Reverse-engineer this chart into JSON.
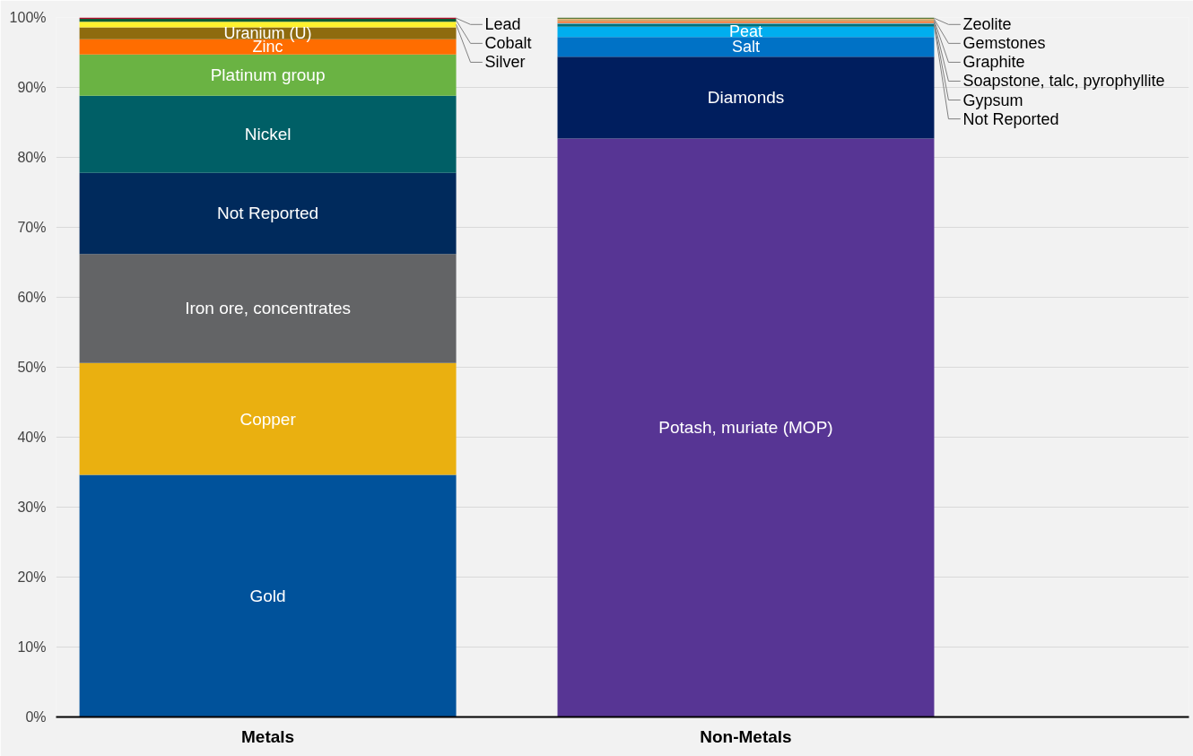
{
  "chart_data": {
    "type": "bar",
    "stacked": true,
    "categories": [
      "Metals",
      "Non-Metals"
    ],
    "ylim": [
      0,
      100
    ],
    "yticks": [
      {
        "value": 0,
        "label": "0%"
      },
      {
        "value": 10,
        "label": "10%"
      },
      {
        "value": 20,
        "label": "20%"
      },
      {
        "value": 30,
        "label": "30%"
      },
      {
        "value": 40,
        "label": "40%"
      },
      {
        "value": 50,
        "label": "50%"
      },
      {
        "value": 60,
        "label": "60%"
      },
      {
        "value": 70,
        "label": "70%"
      },
      {
        "value": 80,
        "label": "80%"
      },
      {
        "value": 90,
        "label": "90%"
      },
      {
        "value": 100,
        "label": "100%"
      }
    ],
    "grid": "y",
    "series": [
      {
        "name": "Gold",
        "color": "#00529b",
        "values": [
          34.6,
          null
        ]
      },
      {
        "name": "Copper",
        "color": "#eab010",
        "values": [
          16.0,
          null
        ]
      },
      {
        "name": "Iron ore, concentrates",
        "color": "#636466",
        "values": [
          15.6,
          null
        ]
      },
      {
        "name": "Not Reported",
        "color": "#002a5c",
        "values": [
          11.6,
          null
        ]
      },
      {
        "name": "Nickel",
        "color": "#005f66",
        "values": [
          11.0,
          null
        ]
      },
      {
        "name": "Platinum group",
        "color": "#6ab343",
        "values": [
          5.9,
          null
        ]
      },
      {
        "name": "Zinc",
        "color": "#ff6d00",
        "values": [
          2.2,
          null
        ]
      },
      {
        "name": "Uranium (U)",
        "color": "#8e6b0e",
        "values": [
          1.7,
          null
        ]
      },
      {
        "name": "Silver",
        "color": "#fff22e",
        "values": [
          0.8,
          null
        ]
      },
      {
        "name": "Cobalt",
        "color": "#0e5a34",
        "values": [
          0.4,
          null
        ]
      },
      {
        "name": "Lead",
        "color": "#b00f2d",
        "values": [
          0.2,
          null
        ]
      },
      {
        "name": "Potash, muriate (MOP)",
        "color": "#573594",
        "values": [
          null,
          82.7
        ]
      },
      {
        "name": "Diamonds",
        "color": "#001e5e",
        "values": [
          null,
          11.7
        ]
      },
      {
        "name": "Salt",
        "color": "#0072c6",
        "values": [
          null,
          2.8
        ]
      },
      {
        "name": "Peat",
        "color": "#00aeef",
        "values": [
          null,
          1.5
        ]
      },
      {
        "name": "Not Reported",
        "color": "#00707a",
        "values": [
          null,
          0.4
        ]
      },
      {
        "name": "Gypsum",
        "color": "#4fb4e0",
        "values": [
          null,
          0.1
        ]
      },
      {
        "name": "Soapstone, talc, pyrophyllite",
        "color": "#f47a3a",
        "values": [
          null,
          0.3
        ]
      },
      {
        "name": "Graphite",
        "color": "#c8a060",
        "values": [
          null,
          0.2
        ]
      },
      {
        "name": "Gemstones",
        "color": "#e2b070",
        "values": [
          null,
          0.1
        ]
      },
      {
        "name": "Zeolite",
        "color": "#5a7a3a",
        "values": [
          null,
          0.2
        ]
      }
    ]
  }
}
